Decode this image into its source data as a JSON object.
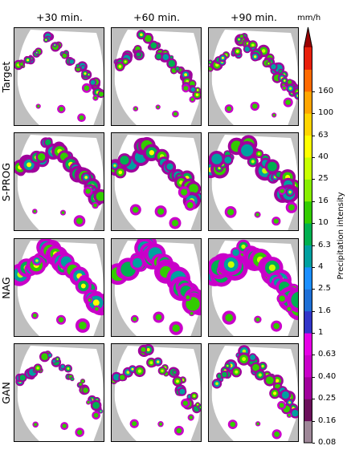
{
  "chart_data": {
    "type": "heatmap",
    "columns": [
      "+30 min.",
      "+60 min.",
      "+90 min."
    ],
    "rows": [
      "Target",
      "S-PROG",
      "NAG",
      "GAN"
    ],
    "colorbar": {
      "unit": "mm/h",
      "label": "Precipitation intensity",
      "ticks": [
        "0.08",
        "0.16",
        "0.25",
        "0.40",
        "0.63",
        "1",
        "1.6",
        "2.5",
        "4",
        "6.3",
        "10",
        "16",
        "25",
        "40",
        "63",
        "100",
        "160"
      ],
      "colors": [
        "#9e8798",
        "#6b0f5b",
        "#a0009c",
        "#c900c9",
        "#e600e6",
        "#3235c9",
        "#1e6fd6",
        "#1b8fff",
        "#00a0a0",
        "#00b050",
        "#33cc00",
        "#88ee00",
        "#c8ff00",
        "#ffff00",
        "#ffd400",
        "#ffa500",
        "#ff6a00",
        "#e8200b",
        "#9a0000"
      ]
    }
  }
}
